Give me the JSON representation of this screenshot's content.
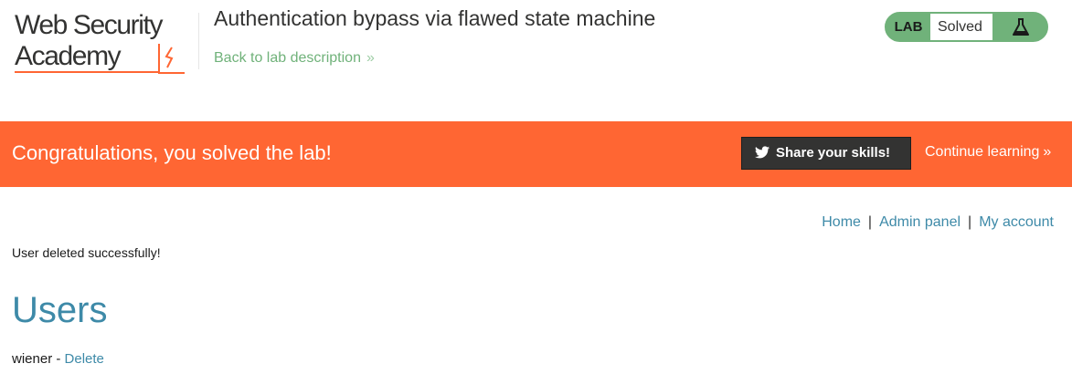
{
  "header": {
    "logo_line1": "Web Security",
    "logo_line2": "Academy",
    "lab_title": "Authentication bypass via flawed state machine",
    "back_link": "Back to lab description",
    "lab_badge": "LAB",
    "lab_status": "Solved",
    "icons": {
      "logo": "lightning-bolt-icon",
      "back_chevron": "double-chevron-right-icon",
      "flask": "flask-icon"
    }
  },
  "banner": {
    "message": "Congratulations, you solved the lab!",
    "share_button": "Share your skills!",
    "continue_link": "Continue learning",
    "icons": {
      "share": "twitter-bird-icon",
      "continue_chevron": "double-chevron-right-icon"
    }
  },
  "nav": {
    "home": "Home",
    "admin": "Admin panel",
    "account": "My account",
    "separator": "|"
  },
  "main": {
    "status_message": "User deleted successfully!",
    "heading": "Users",
    "users": [
      {
        "name": "wiener",
        "separator": " - ",
        "action": "Delete"
      }
    ]
  },
  "colors": {
    "banner": "#ff6633",
    "accent_green": "#70b27a",
    "link_blue": "#3e8aa8",
    "dark_button": "#333332"
  }
}
